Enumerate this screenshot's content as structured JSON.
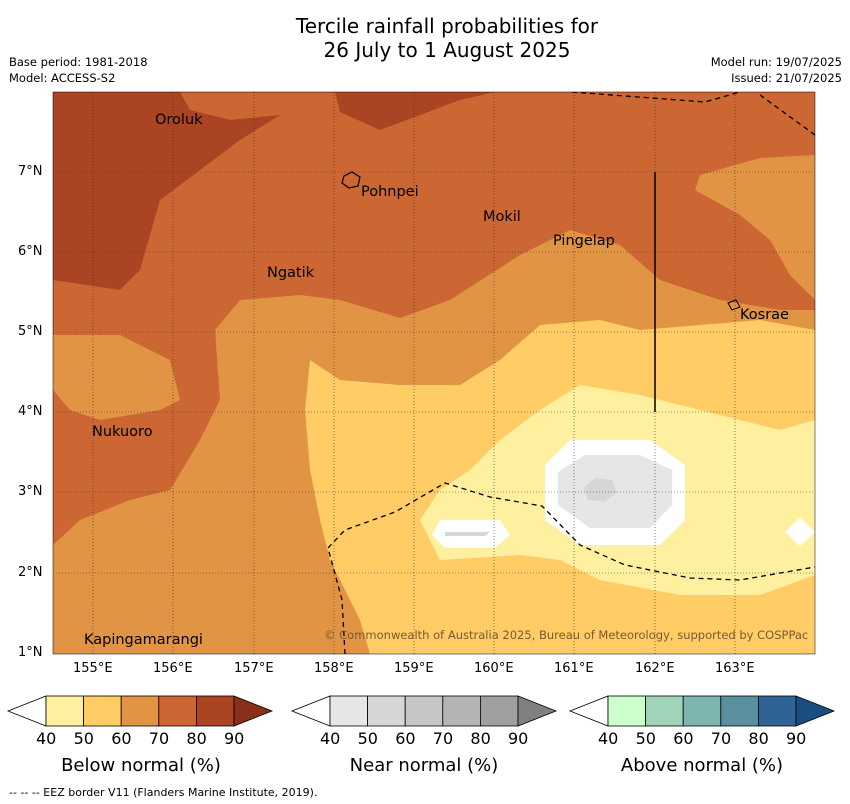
{
  "header": {
    "title_line1": "Tercile rainfall probabilities for",
    "title_line2": "26 July to 1 August 2025",
    "base_period": "Base period: 1981-2018",
    "model": "Model: ACCESS-S2",
    "model_run": "Model run: 19/07/2025",
    "issued": "Issued: 21/07/2025"
  },
  "map": {
    "lon_labels": [
      "155°E",
      "156°E",
      "157°E",
      "158°E",
      "159°E",
      "160°E",
      "161°E",
      "162°E",
      "163°E"
    ],
    "lat_labels": [
      "7°N",
      "6°N",
      "5°N",
      "4°N",
      "3°N",
      "2°N",
      "1°N"
    ],
    "places": [
      "Oroluk",
      "Pohnpei",
      "Mokil",
      "Pingelap",
      "Ngatik",
      "Kosrae",
      "Nukuoro",
      "Kapingamarangi"
    ],
    "copyright": "© Commonwealth of Australia 2025, Bureau of Meteorology, supported by COSPPac"
  },
  "colorbars": [
    {
      "label": "Below normal (%)",
      "ticks": [
        "40",
        "50",
        "60",
        "70",
        "80",
        "90"
      ],
      "colors": [
        "#ffffff",
        "#fff0a0",
        "#ffcc66",
        "#e09444",
        "#cc6633",
        "#aa4422",
        "#8b3018"
      ]
    },
    {
      "label": "Near normal (%)",
      "ticks": [
        "40",
        "50",
        "60",
        "70",
        "80",
        "90"
      ],
      "colors": [
        "#ffffff",
        "#e6e6e6",
        "#d6d6d6",
        "#c6c6c6",
        "#b4b4b4",
        "#a0a0a0",
        "#808080"
      ]
    },
    {
      "label": "Above normal (%)",
      "ticks": [
        "40",
        "50",
        "60",
        "70",
        "80",
        "90"
      ],
      "colors": [
        "#ffffff",
        "#ccffcc",
        "#9fd4b8",
        "#7fb5b0",
        "#5a8fa0",
        "#2f6395",
        "#1a4d80"
      ]
    }
  ],
  "footer": {
    "eez_note": "--  --  -- EEZ border V11 (Flanders Marine Institute, 2019)."
  }
}
